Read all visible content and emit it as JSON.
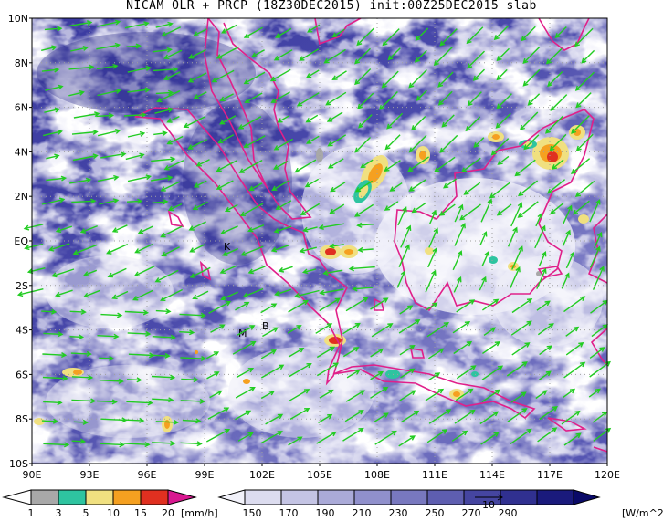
{
  "title": "NICAM OLR + PRCP (18Z30DEC2015) init:00Z25DEC2015 slab",
  "map": {
    "lat_labels": [
      "10N",
      "8N",
      "6N",
      "4N",
      "2N",
      "EQ",
      "2S",
      "4S",
      "6S",
      "8S",
      "10S"
    ],
    "lon_labels": [
      "90E",
      "93E",
      "96E",
      "99E",
      "102E",
      "105E",
      "108E",
      "111E",
      "114E",
      "117E",
      "120E"
    ],
    "place_markers": [
      "K",
      "M",
      "B"
    ],
    "coastline_color": "#e0208a",
    "vector_color": "#22cc22"
  },
  "precip_bar": {
    "unit": "[mm/h]",
    "ticks": [
      "1",
      "3",
      "5",
      "10",
      "15",
      "20"
    ],
    "colors": [
      "#a8a8a8",
      "#2ec4a0",
      "#f0e080",
      "#f5a020",
      "#e03020",
      "#d81890"
    ]
  },
  "olr_bar": {
    "unit": "[W/m^2]",
    "ticks": [
      "150",
      "170",
      "190",
      "210",
      "230",
      "250",
      "270",
      "290"
    ],
    "colors": [
      "#f2f2fa",
      "#dcdcef",
      "#c4c4e4",
      "#aaaad8",
      "#9090cc",
      "#7878bf",
      "#5e5eb0",
      "#4545a0",
      "#303090",
      "#1a1a7c",
      "#0a0a68"
    ],
    "vector_reference": "10"
  }
}
